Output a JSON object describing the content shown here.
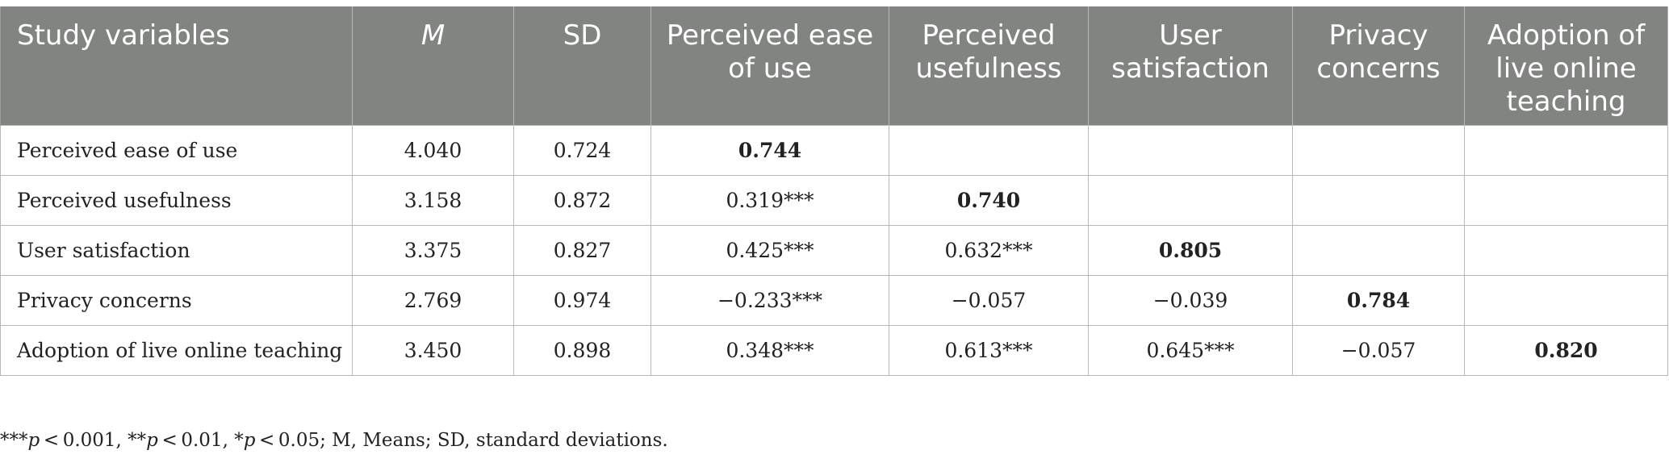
{
  "table": {
    "headers": [
      "Study variables",
      "M",
      "SD",
      "Perceived ease of use",
      "Perceived usefulness",
      "User satisfaction",
      "Privacy concerns",
      "Adoption of live online teaching"
    ],
    "rows": [
      {
        "variable": "Perceived ease of use",
        "m": "4.040",
        "sd": "0.724",
        "c1": "0.744",
        "c2": "",
        "c3": "",
        "c4": "",
        "c5": ""
      },
      {
        "variable": "Perceived usefulness",
        "m": "3.158",
        "sd": "0.872",
        "c1": "0.319***",
        "c2": "0.740",
        "c3": "",
        "c4": "",
        "c5": ""
      },
      {
        "variable": "User satisfaction",
        "m": "3.375",
        "sd": "0.827",
        "c1": "0.425***",
        "c2": "0.632***",
        "c3": "0.805",
        "c4": "",
        "c5": ""
      },
      {
        "variable": "Privacy concerns",
        "m": "2.769",
        "sd": "0.974",
        "c1": "−0.233***",
        "c2": "−0.057",
        "c3": "−0.039",
        "c4": "0.784",
        "c5": ""
      },
      {
        "variable": "Adoption of live online teaching",
        "m": "3.450",
        "sd": "0.898",
        "c1": "0.348***",
        "c2": "0.613***",
        "c3": "0.645***",
        "c4": "−0.057",
        "c5": "0.820"
      }
    ]
  },
  "note": {
    "p1_stars": "***",
    "p1_sym": "p",
    "p1_val": " < 0.001, ",
    "p2_stars": "**",
    "p2_sym": "p",
    "p2_val": " < 0.01, ",
    "p3_stars": "*",
    "p3_sym": "p",
    "p3_val": " < 0.05; M, Means; SD, standard deviations."
  },
  "colors": {
    "header_bg": "#818481",
    "header_text": "#ffffff",
    "border": "#b8b8b8"
  }
}
